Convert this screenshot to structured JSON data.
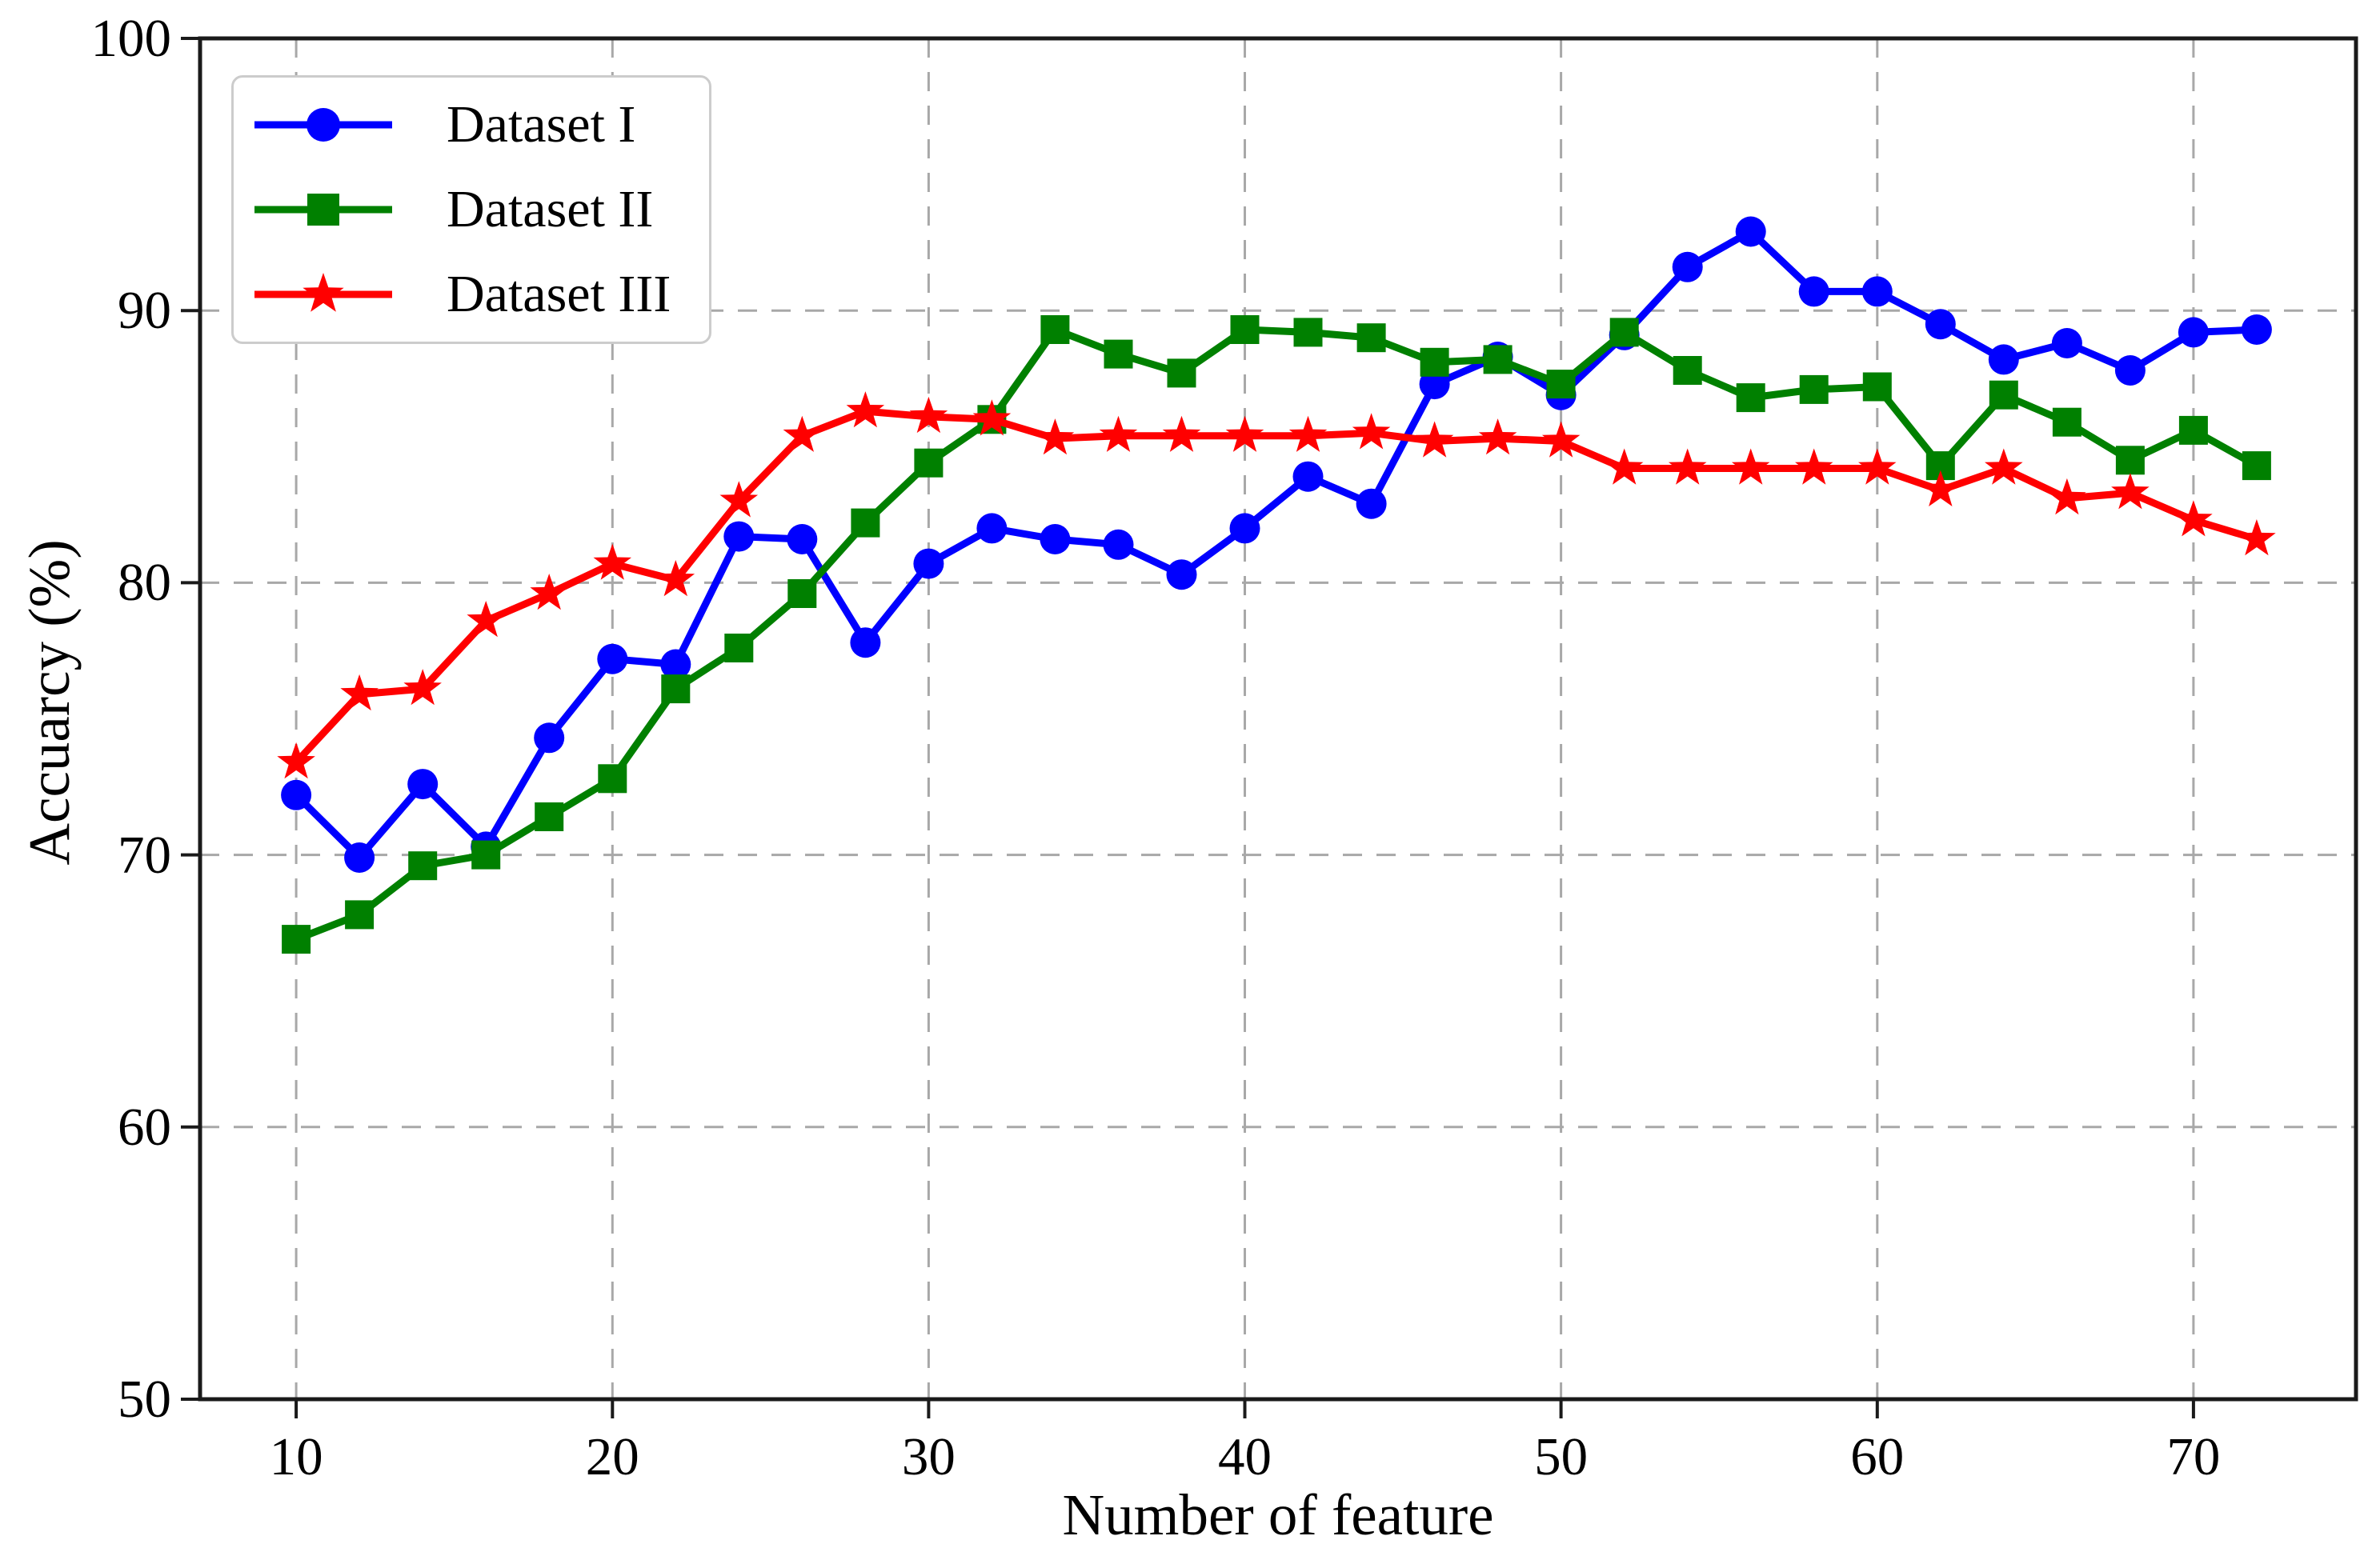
{
  "figure": {
    "background": "#ffffff"
  },
  "chart_data": {
    "type": "line",
    "title": "",
    "xlabel": "Number of feature",
    "ylabel": "Accuarcy (%)",
    "xlim": [
      6.96,
      75.14
    ],
    "ylim": [
      50,
      100
    ],
    "xticks": [
      10,
      20,
      30,
      40,
      50,
      60,
      70
    ],
    "yticks": [
      50,
      60,
      70,
      80,
      90,
      100
    ],
    "grid": true,
    "grid_color": "#a8a8a8",
    "grid_style": "dashed",
    "spine_color": "#1a1a1a",
    "tick_color": "#1a1a1a",
    "legend_position": "upper left",
    "x": [
      10,
      12,
      14,
      16,
      18,
      20,
      22,
      24,
      26,
      28,
      30,
      32,
      34,
      36,
      38,
      40,
      42,
      44,
      46,
      48,
      50,
      52,
      54,
      56,
      58,
      60,
      62,
      64,
      66,
      68,
      70,
      72
    ],
    "series": [
      {
        "name": "Dataset I",
        "color": "#0000ff",
        "marker": "circle",
        "values": [
          72.2,
          69.9,
          72.6,
          70.3,
          74.3,
          77.2,
          77.0,
          81.7,
          81.6,
          77.8,
          80.7,
          82.0,
          81.6,
          81.4,
          80.3,
          82.0,
          83.9,
          82.9,
          87.3,
          88.3,
          86.9,
          89.1,
          91.6,
          92.9,
          90.7,
          90.7,
          89.5,
          88.2,
          88.8,
          87.8,
          89.2,
          89.3
        ]
      },
      {
        "name": "Dataset II",
        "color": "#008000",
        "marker": "square",
        "values": [
          66.9,
          67.8,
          69.6,
          70.0,
          71.4,
          72.8,
          76.1,
          77.6,
          79.6,
          82.2,
          84.4,
          86.0,
          89.3,
          88.4,
          87.7,
          89.3,
          89.2,
          89.0,
          88.1,
          88.2,
          87.3,
          89.2,
          87.8,
          86.8,
          87.1,
          87.2,
          84.3,
          86.9,
          85.9,
          84.5,
          85.6,
          84.3
        ]
      },
      {
        "name": "Dataset III",
        "color": "#ff0000",
        "marker": "star",
        "values": [
          73.4,
          75.9,
          76.1,
          78.6,
          79.6,
          80.7,
          80.1,
          83.0,
          85.4,
          86.3,
          86.1,
          86.0,
          85.3,
          85.4,
          85.4,
          85.4,
          85.4,
          85.5,
          85.2,
          85.3,
          85.2,
          84.2,
          84.2,
          84.2,
          84.2,
          84.2,
          83.4,
          84.2,
          83.1,
          83.3,
          82.3,
          81.6
        ]
      }
    ]
  }
}
